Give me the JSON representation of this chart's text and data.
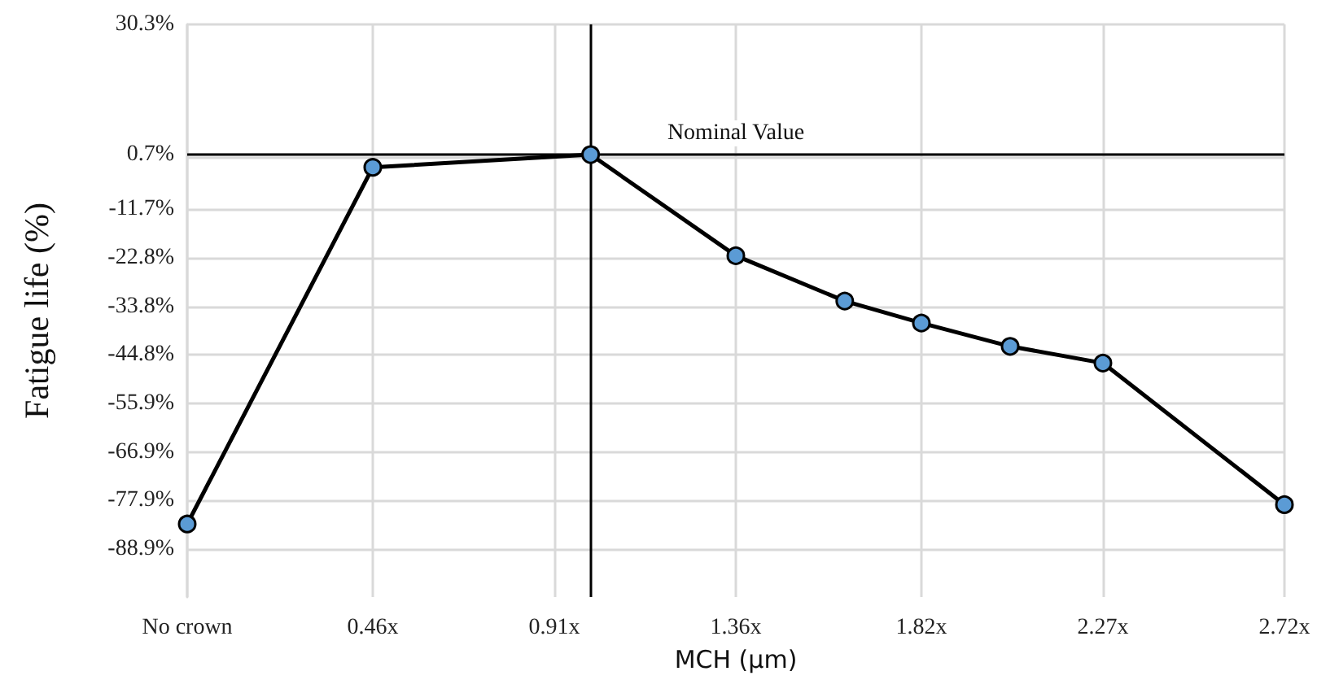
{
  "chart_data": {
    "type": "line",
    "xlabel": "MCH (µm)",
    "ylabel": "Fatigue life (%)",
    "x": [
      0,
      0.46,
      1.0,
      1.36,
      1.63,
      1.82,
      2.04,
      2.27,
      2.72
    ],
    "series": [
      {
        "color": "#000000",
        "values": [
          -83.3,
          -2.2,
          0.7,
          -22.3,
          -32.6,
          -37.6,
          -42.9,
          -46.7,
          -78.9
        ]
      }
    ],
    "xlim": [
      0,
      2.72
    ],
    "xticks": [
      {
        "value": 0,
        "label": "No crown"
      },
      {
        "value": 0.46,
        "label": "0.46x"
      },
      {
        "value": 0.91,
        "label": "0.91x"
      },
      {
        "value": 1.36,
        "label": "1.36x"
      },
      {
        "value": 1.82,
        "label": "1.82x"
      },
      {
        "value": 2.27,
        "label": "2.27x"
      },
      {
        "value": 2.72,
        "label": "2.72x"
      }
    ],
    "ylim": [
      -99.9,
      30.3
    ],
    "yticks": [
      {
        "value": 30.3,
        "label": "30.3%"
      },
      {
        "value": 0.7,
        "label": "0.7%"
      },
      {
        "value": -11.7,
        "label": "-11.7%"
      },
      {
        "value": -22.8,
        "label": "-22.8%"
      },
      {
        "value": -33.8,
        "label": "-33.8%"
      },
      {
        "value": -44.8,
        "label": "-44.8%"
      },
      {
        "value": -55.9,
        "label": "-55.9%"
      },
      {
        "value": -66.9,
        "label": "-66.9%"
      },
      {
        "value": -77.9,
        "label": "-77.9%"
      },
      {
        "value": -88.9,
        "label": "-88.9%"
      }
    ],
    "ref_lines": [
      {
        "axis": "y",
        "value": 0.7,
        "label": "Nominal Value",
        "color": "#000000"
      },
      {
        "axis": "x",
        "value": 1.0,
        "color": "#000000"
      }
    ],
    "grid": true,
    "marker": "circle",
    "line_style": "solid"
  }
}
